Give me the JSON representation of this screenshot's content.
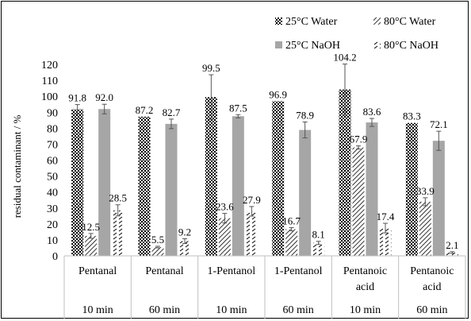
{
  "chart_data": {
    "type": "bar",
    "ylabel": "residual contaminant / %",
    "ylim": [
      0,
      120
    ],
    "yticks": [
      0,
      10,
      20,
      30,
      40,
      50,
      60,
      70,
      80,
      90,
      100,
      110,
      120
    ],
    "grid": false,
    "legend_position": "top-right",
    "categories": [
      {
        "name": [
          "Pentanal"
        ],
        "time": "10 min"
      },
      {
        "name": [
          "Pentanal"
        ],
        "time": "60 min"
      },
      {
        "name": [
          "1-Pentanol"
        ],
        "time": "10 min"
      },
      {
        "name": [
          "1-Pentanol"
        ],
        "time": "60 min"
      },
      {
        "name": [
          "Pentanoic",
          "acid"
        ],
        "time": "10 min"
      },
      {
        "name": [
          "Pentanoic",
          "acid"
        ],
        "time": "60 min"
      }
    ],
    "series": [
      {
        "name": "25°C Water",
        "pattern": "checker",
        "color": "#000000",
        "values": [
          91.8,
          87.2,
          99.5,
          96.9,
          104.2,
          83.3
        ],
        "labels": [
          "91.8",
          "87.2",
          "99.5",
          "96.9",
          "104.2",
          "83.3"
        ],
        "errors": [
          3,
          0,
          14,
          0,
          16,
          0
        ]
      },
      {
        "name": "80°C Water",
        "pattern": "diag-dense",
        "color": "#000000",
        "values": [
          12.5,
          5.5,
          23.6,
          16.7,
          67.9,
          33.9
        ],
        "labels": [
          "12.5",
          "5.5",
          "23.6",
          "16.7",
          "67.9",
          "33.9"
        ],
        "errors": [
          1.5,
          0.5,
          3,
          1,
          1,
          2.5
        ]
      },
      {
        "name": "25°C NaOH",
        "pattern": "solid",
        "color": "#a6a6a6",
        "values": [
          92.0,
          82.7,
          87.5,
          78.9,
          83.6,
          72.1
        ],
        "labels": [
          "92.0",
          "82.7",
          "87.5",
          "78.9",
          "83.6",
          "72.1"
        ],
        "errors": [
          3,
          3,
          1,
          5,
          2.5,
          6
        ]
      },
      {
        "name": "80°C NaOH",
        "pattern": "dash",
        "color": "#000000",
        "values": [
          28.5,
          9.2,
          27.9,
          8.1,
          17.4,
          2.1
        ],
        "labels": [
          "28.5",
          "9.2",
          "27.9",
          "8.1",
          "17.4",
          "2.1"
        ],
        "errors": [
          3.5,
          1.5,
          3,
          1,
          3,
          0.5
        ]
      }
    ]
  }
}
